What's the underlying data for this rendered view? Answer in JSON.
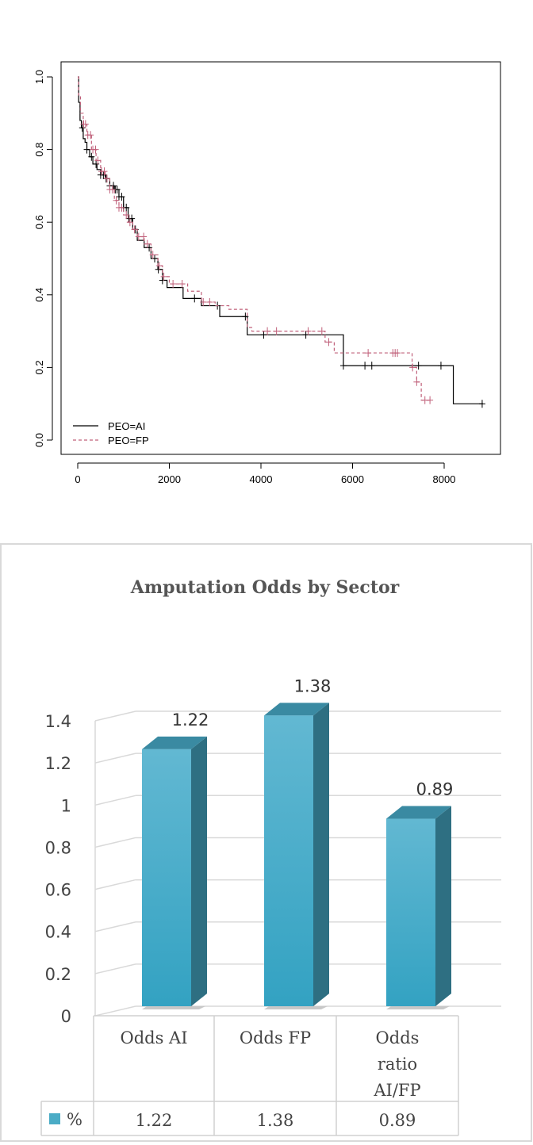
{
  "chart_data": [
    {
      "type": "line",
      "title": "",
      "xlabel": "",
      "ylabel": "",
      "xlim": [
        0,
        8900
      ],
      "ylim": [
        0,
        1.0
      ],
      "x_ticks": [
        "0",
        "2000",
        "4000",
        "6000",
        "8000"
      ],
      "y_ticks": [
        "0.0",
        "0.2",
        "0.4",
        "0.6",
        "0.8",
        "1.0"
      ],
      "legend_placement": "bottom-left",
      "series": [
        {
          "name": "PEO=AI",
          "color": "#000000",
          "linestyle": "solid",
          "steps": [
            [
              0,
              1.0
            ],
            [
              20,
              0.93
            ],
            [
              50,
              0.88
            ],
            [
              80,
              0.86
            ],
            [
              120,
              0.83
            ],
            [
              160,
              0.82
            ],
            [
              200,
              0.8
            ],
            [
              260,
              0.78
            ],
            [
              330,
              0.76
            ],
            [
              420,
              0.745
            ],
            [
              500,
              0.73
            ],
            [
              600,
              0.72
            ],
            [
              700,
              0.7
            ],
            [
              800,
              0.69
            ],
            [
              900,
              0.67
            ],
            [
              1000,
              0.64
            ],
            [
              1100,
              0.61
            ],
            [
              1200,
              0.58
            ],
            [
              1300,
              0.55
            ],
            [
              1450,
              0.53
            ],
            [
              1600,
              0.5
            ],
            [
              1750,
              0.47
            ],
            [
              1850,
              0.44
            ],
            [
              1950,
              0.42
            ],
            [
              2300,
              0.39
            ],
            [
              2700,
              0.37
            ],
            [
              3100,
              0.34
            ],
            [
              3700,
              0.29
            ],
            [
              5800,
              0.205
            ],
            [
              8200,
              0.1
            ],
            [
              8850,
              0.1
            ]
          ],
          "censor_x": [
            100,
            200,
            300,
            400,
            500,
            560,
            620,
            700,
            780,
            820,
            860,
            900,
            960,
            1000,
            1060,
            1120,
            1180,
            1260,
            1560,
            1680,
            1760,
            1850,
            2550,
            3050,
            3660,
            4060,
            4980,
            5800,
            6270,
            6420,
            7440,
            7930,
            8830
          ]
        },
        {
          "name": "PEO=FP",
          "color": "#c0607a",
          "linestyle": "dashed",
          "steps": [
            [
              0,
              1.0
            ],
            [
              20,
              0.95
            ],
            [
              60,
              0.9
            ],
            [
              120,
              0.87
            ],
            [
              200,
              0.84
            ],
            [
              300,
              0.8
            ],
            [
              400,
              0.77
            ],
            [
              500,
              0.74
            ],
            [
              600,
              0.72
            ],
            [
              700,
              0.69
            ],
            [
              800,
              0.66
            ],
            [
              900,
              0.64
            ],
            [
              1000,
              0.62
            ],
            [
              1100,
              0.6
            ],
            [
              1200,
              0.58
            ],
            [
              1300,
              0.56
            ],
            [
              1450,
              0.54
            ],
            [
              1600,
              0.51
            ],
            [
              1750,
              0.48
            ],
            [
              1850,
              0.45
            ],
            [
              2000,
              0.43
            ],
            [
              2400,
              0.41
            ],
            [
              2700,
              0.38
            ],
            [
              3000,
              0.37
            ],
            [
              3300,
              0.36
            ],
            [
              3700,
              0.31
            ],
            [
              3800,
              0.3
            ],
            [
              5400,
              0.27
            ],
            [
              5600,
              0.24
            ],
            [
              6300,
              0.24
            ],
            [
              7300,
              0.2
            ],
            [
              7400,
              0.16
            ],
            [
              7500,
              0.11
            ],
            [
              7700,
              0.11
            ]
          ],
          "censor_x": [
            130,
            170,
            220,
            280,
            330,
            390,
            440,
            520,
            580,
            640,
            700,
            760,
            840,
            900,
            960,
            1060,
            1140,
            1240,
            1330,
            1440,
            1520,
            1640,
            1780,
            1880,
            2080,
            2280,
            2740,
            2880,
            4140,
            4340,
            5030,
            5330,
            5480,
            6340,
            6880,
            6930,
            6980,
            7310,
            7400,
            7580,
            7690
          ]
        }
      ]
    },
    {
      "type": "bar",
      "title": "Amputation Odds by Sector",
      "categories": [
        "Odds AI",
        "Odds FP",
        "Odds ratio AI/FP"
      ],
      "series": [
        {
          "name": "%",
          "values": [
            1.22,
            1.38,
            0.89
          ],
          "color": "#4bacc6"
        }
      ],
      "data_labels": [
        "1.22",
        "1.38",
        "0.89"
      ],
      "table_values": [
        "1.22",
        "1.38",
        "0.89"
      ],
      "ylim": [
        0,
        1.4
      ],
      "y_ticks": [
        "0",
        "0.2",
        "0.4",
        "0.6",
        "0.8",
        "1",
        "1.2",
        "1.4"
      ],
      "grid": true,
      "data_table": true
    }
  ]
}
